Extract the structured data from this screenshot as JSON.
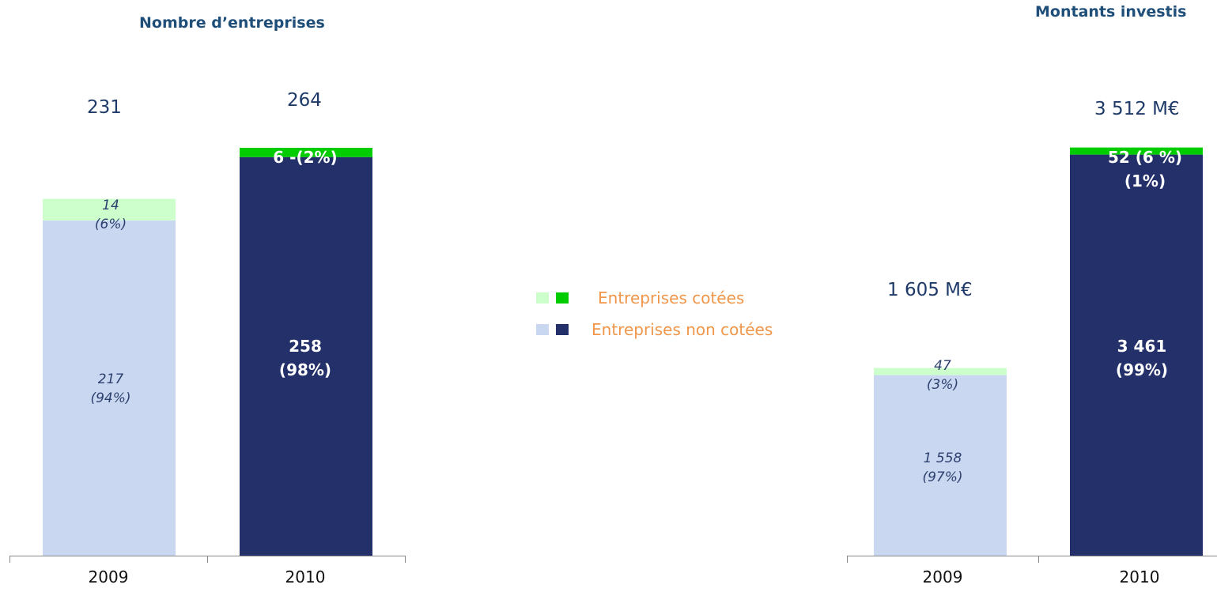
{
  "legend": [
    {
      "label": "Entreprises cotées",
      "colors": [
        "#ccffcc",
        "#00cc00"
      ]
    },
    {
      "label": "Entreprises non cotées",
      "colors": [
        "#c9d8f0",
        "#23306a"
      ]
    }
  ],
  "chart_data": [
    {
      "type": "bar",
      "title": "Nombre d’entreprises",
      "categories": [
        "2009",
        "2010"
      ],
      "totals": [
        "231",
        "264"
      ],
      "series": [
        {
          "name": "Entreprises non cotées",
          "values": [
            217,
            258
          ],
          "labels": [
            "217\n(94%)",
            "258\n(98%)"
          ]
        },
        {
          "name": "Entreprises cotées",
          "values": [
            14,
            6
          ],
          "labels": [
            "14\n(6%)",
            "6 -(2%)"
          ]
        }
      ],
      "colors": {
        "2009": [
          "#c9d8f0",
          "#ccffcc"
        ],
        "2010": [
          "#23306a",
          "#00cc00"
        ]
      }
    },
    {
      "type": "bar",
      "title": "Montants investis",
      "categories": [
        "2009",
        "2010"
      ],
      "totals": [
        "1 605 M€",
        "3 512 M€"
      ],
      "series": [
        {
          "name": "Entreprises non cotées",
          "values": [
            1558,
            3461
          ],
          "labels": [
            "1 558\n(97%)",
            "3 461\n(99%)"
          ]
        },
        {
          "name": "Entreprises cotées",
          "values": [
            47,
            52
          ],
          "labels": [
            "47\n(3%)",
            "52 (6 %)\n(1%)"
          ]
        }
      ],
      "colors": {
        "2009": [
          "#c9d8f0",
          "#ccffcc"
        ],
        "2010": [
          "#23306a",
          "#00cc00"
        ]
      }
    }
  ]
}
